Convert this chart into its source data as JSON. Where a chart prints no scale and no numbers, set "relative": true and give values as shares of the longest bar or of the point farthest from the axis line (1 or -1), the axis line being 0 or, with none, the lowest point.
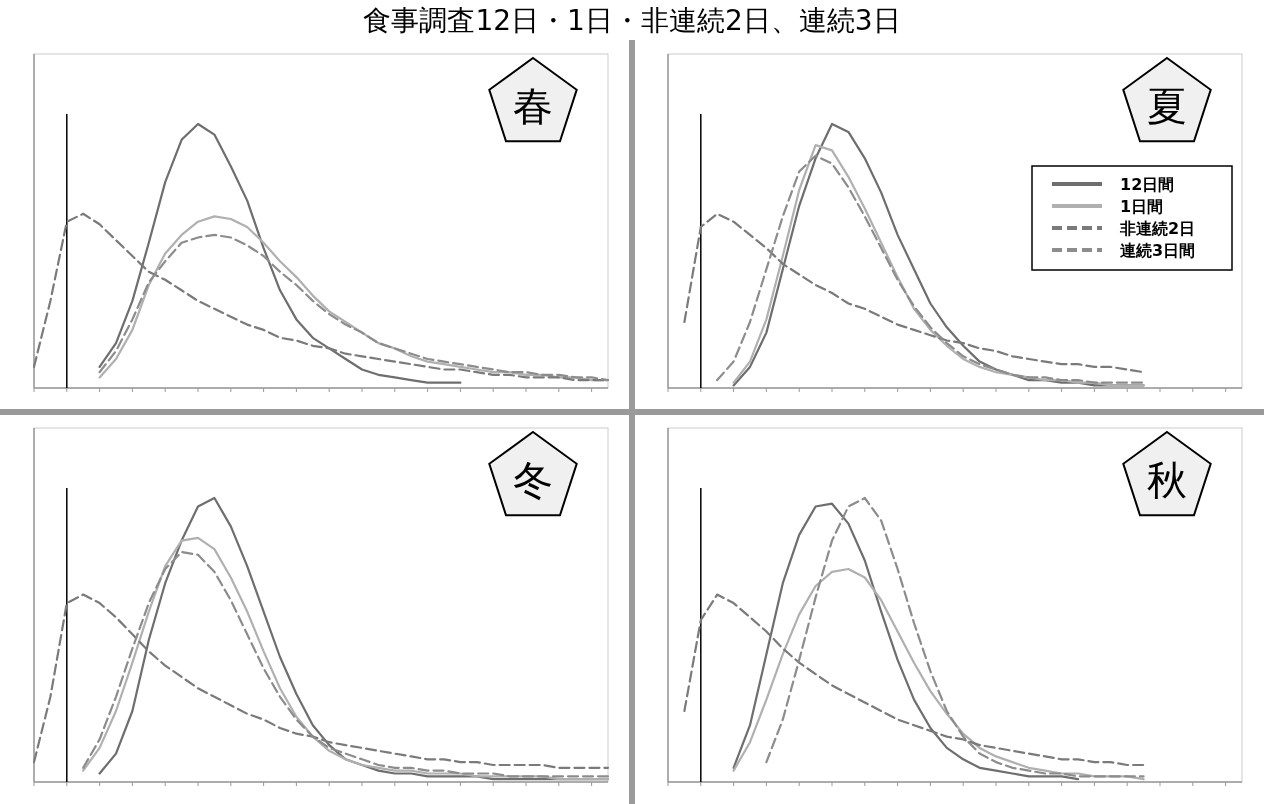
{
  "chart_data": [
    {
      "type": "line",
      "title": "春",
      "relative": true,
      "annotations": [
        "食事調査12日・1日・非連続2日、連続3日"
      ],
      "categories": [
        null,
        null,
        null,
        null,
        null,
        null,
        null,
        null,
        null,
        null,
        null,
        null,
        null,
        null,
        null,
        null,
        null,
        null,
        null,
        null,
        null,
        null,
        null,
        null,
        null,
        null,
        null,
        null,
        null,
        null,
        null,
        null,
        null,
        null,
        null,
        null
      ],
      "series": [
        {
          "color": "#6e6e6e",
          "line_style": "solid",
          "values": [
            null,
            null,
            null,
            null,
            0.08,
            0.17,
            0.33,
            0.55,
            0.78,
            0.94,
            1.0,
            0.96,
            0.84,
            0.71,
            0.53,
            0.37,
            0.26,
            0.19,
            0.15,
            0.11,
            0.07,
            0.05,
            0.04,
            0.03,
            0.02,
            0.02,
            0.02,
            null,
            null,
            null,
            null,
            null,
            null,
            null,
            null,
            null
          ]
        },
        {
          "color": "#b0b0b0",
          "line_style": "solid",
          "values": [
            null,
            null,
            null,
            null,
            0.04,
            0.11,
            0.22,
            0.39,
            0.51,
            0.58,
            0.63,
            0.65,
            0.64,
            0.61,
            0.55,
            0.48,
            0.42,
            0.35,
            0.29,
            0.25,
            0.21,
            0.17,
            0.15,
            0.12,
            0.1,
            0.09,
            0.08,
            0.07,
            0.06,
            0.06,
            0.05,
            0.05,
            0.04,
            0.04,
            0.03,
            0.03
          ]
        },
        {
          "color": "#7a7a7a",
          "line_style": "dashed",
          "values": [
            0.08,
            0.33,
            0.63,
            0.66,
            0.62,
            0.56,
            0.5,
            0.44,
            0.41,
            0.37,
            0.33,
            0.3,
            0.27,
            0.24,
            0.22,
            0.19,
            0.18,
            0.16,
            0.15,
            0.13,
            0.12,
            0.11,
            0.1,
            0.09,
            0.08,
            0.07,
            0.07,
            0.06,
            0.05,
            0.05,
            0.04,
            0.04,
            0.04,
            0.03,
            0.03,
            0.03
          ]
        },
        {
          "color": "#8c8c8c",
          "line_style": "dashed",
          "values": [
            null,
            null,
            null,
            null,
            0.06,
            0.14,
            0.26,
            0.4,
            0.48,
            0.55,
            0.57,
            0.58,
            0.57,
            0.54,
            0.5,
            0.44,
            0.39,
            0.33,
            0.28,
            0.24,
            0.21,
            0.17,
            0.15,
            0.13,
            0.11,
            0.1,
            0.09,
            0.08,
            0.07,
            0.06,
            0.06,
            0.05,
            0.05,
            0.04,
            0.04,
            0.03
          ]
        }
      ]
    },
    {
      "type": "line",
      "title": "夏",
      "relative": true,
      "legend": "top right",
      "categories": [
        null,
        null,
        null,
        null,
        null,
        null,
        null,
        null,
        null,
        null,
        null,
        null,
        null,
        null,
        null,
        null,
        null,
        null,
        null,
        null,
        null,
        null,
        null,
        null,
        null,
        null,
        null,
        null,
        null,
        null,
        null,
        null,
        null,
        null,
        null,
        null
      ],
      "series": [
        {
          "name": "12日間",
          "color": "#6e6e6e",
          "line_style": "solid",
          "values": [
            null,
            null,
            null,
            null,
            0.01,
            0.08,
            0.21,
            0.45,
            0.69,
            0.87,
            1.0,
            0.97,
            0.87,
            0.74,
            0.58,
            0.45,
            0.32,
            0.23,
            0.16,
            0.1,
            0.07,
            0.05,
            0.03,
            0.03,
            0.02,
            0.02,
            0.01,
            0.01,
            0.01,
            0.01,
            null,
            null,
            null,
            null,
            null,
            null
          ]
        },
        {
          "name": "1日間",
          "color": "#b0b0b0",
          "line_style": "solid",
          "values": [
            null,
            null,
            null,
            null,
            0.02,
            0.1,
            0.26,
            0.5,
            0.75,
            0.92,
            0.9,
            0.8,
            0.68,
            0.55,
            0.42,
            0.3,
            0.22,
            0.16,
            0.11,
            0.08,
            0.06,
            0.05,
            0.04,
            0.03,
            0.03,
            0.02,
            0.02,
            0.01,
            0.01,
            0.01,
            null,
            null,
            null,
            null,
            null,
            null
          ]
        },
        {
          "name": "非連続2日",
          "color": "#7a7a7a",
          "line_style": "dashed",
          "values": [
            null,
            0.25,
            0.61,
            0.66,
            0.63,
            0.58,
            0.53,
            0.47,
            0.43,
            0.39,
            0.36,
            0.32,
            0.3,
            0.27,
            0.24,
            0.22,
            0.2,
            0.18,
            0.17,
            0.15,
            0.14,
            0.12,
            0.11,
            0.1,
            0.09,
            0.09,
            0.08,
            0.08,
            0.07,
            0.06,
            null,
            null,
            null,
            null,
            null,
            null
          ]
        },
        {
          "name": "連続3日間",
          "color": "#8c8c8c",
          "line_style": "dashed",
          "values": [
            null,
            null,
            null,
            0.03,
            0.1,
            0.25,
            0.45,
            0.65,
            0.82,
            0.88,
            0.85,
            0.76,
            0.65,
            0.53,
            0.41,
            0.31,
            0.23,
            0.17,
            0.12,
            0.09,
            0.07,
            0.05,
            0.04,
            0.04,
            0.03,
            0.03,
            0.02,
            0.02,
            0.02,
            0.02,
            null,
            null,
            null,
            null,
            null,
            null
          ]
        }
      ]
    },
    {
      "type": "line",
      "title": "冬",
      "relative": true,
      "categories": [
        null,
        null,
        null,
        null,
        null,
        null,
        null,
        null,
        null,
        null,
        null,
        null,
        null,
        null,
        null,
        null,
        null,
        null,
        null,
        null,
        null,
        null,
        null,
        null,
        null,
        null,
        null,
        null,
        null,
        null,
        null,
        null,
        null,
        null,
        null,
        null
      ],
      "series": [
        {
          "color": "#6e6e6e",
          "line_style": "solid",
          "values": [
            null,
            null,
            null,
            null,
            0.03,
            0.1,
            0.25,
            0.5,
            0.7,
            0.85,
            0.97,
            1.0,
            0.9,
            0.76,
            0.6,
            0.44,
            0.31,
            0.2,
            0.13,
            0.08,
            0.06,
            0.04,
            0.03,
            0.03,
            0.02,
            0.02,
            0.02,
            0.02,
            0.01,
            0.01,
            0.01,
            0.01,
            0.01,
            0.01,
            0.01,
            0.01
          ]
        },
        {
          "color": "#b0b0b0",
          "line_style": "solid",
          "values": [
            null,
            null,
            null,
            0.04,
            0.12,
            0.25,
            0.42,
            0.6,
            0.76,
            0.85,
            0.86,
            0.82,
            0.72,
            0.6,
            0.46,
            0.33,
            0.23,
            0.16,
            0.11,
            0.08,
            0.06,
            0.05,
            0.04,
            0.04,
            0.03,
            0.03,
            0.03,
            0.02,
            0.02,
            0.02,
            0.02,
            0.02,
            0.01,
            0.01,
            0.01,
            0.01
          ]
        },
        {
          "color": "#7a7a7a",
          "line_style": "dashed",
          "values": [
            0.07,
            0.3,
            0.63,
            0.66,
            0.63,
            0.58,
            0.52,
            0.46,
            0.41,
            0.37,
            0.33,
            0.3,
            0.27,
            0.24,
            0.22,
            0.19,
            0.17,
            0.16,
            0.14,
            0.13,
            0.12,
            0.11,
            0.1,
            0.09,
            0.08,
            0.08,
            0.07,
            0.07,
            0.06,
            0.06,
            0.06,
            0.06,
            0.05,
            0.05,
            0.05,
            0.05
          ]
        },
        {
          "color": "#8c8c8c",
          "line_style": "dashed",
          "values": [
            null,
            null,
            null,
            0.05,
            0.15,
            0.3,
            0.47,
            0.63,
            0.75,
            0.81,
            0.8,
            0.74,
            0.64,
            0.52,
            0.4,
            0.3,
            0.22,
            0.16,
            0.12,
            0.1,
            0.08,
            0.06,
            0.05,
            0.05,
            0.04,
            0.04,
            0.03,
            0.03,
            0.03,
            0.02,
            0.02,
            0.02,
            0.02,
            0.02,
            0.02,
            0.02
          ]
        }
      ]
    },
    {
      "type": "line",
      "title": "秋",
      "relative": true,
      "categories": [
        null,
        null,
        null,
        null,
        null,
        null,
        null,
        null,
        null,
        null,
        null,
        null,
        null,
        null,
        null,
        null,
        null,
        null,
        null,
        null,
        null,
        null,
        null,
        null,
        null,
        null,
        null,
        null,
        null,
        null,
        null,
        null,
        null,
        null,
        null,
        null
      ],
      "series": [
        {
          "color": "#6e6e6e",
          "line_style": "solid",
          "values": [
            null,
            null,
            null,
            null,
            0.05,
            0.2,
            0.45,
            0.7,
            0.87,
            0.97,
            0.98,
            0.91,
            0.78,
            0.6,
            0.43,
            0.29,
            0.19,
            0.12,
            0.08,
            0.05,
            0.04,
            0.03,
            0.02,
            0.02,
            0.02,
            0.01,
            null,
            null,
            null,
            null,
            null,
            null,
            null,
            null,
            null,
            null
          ]
        },
        {
          "color": "#b0b0b0",
          "line_style": "solid",
          "values": [
            null,
            null,
            null,
            null,
            0.04,
            0.14,
            0.29,
            0.45,
            0.59,
            0.69,
            0.74,
            0.75,
            0.72,
            0.64,
            0.53,
            0.42,
            0.32,
            0.24,
            0.17,
            0.12,
            0.09,
            0.07,
            0.05,
            0.04,
            0.03,
            0.03,
            0.02,
            0.02,
            0.02,
            0.01,
            null,
            null,
            null,
            null,
            null,
            null
          ]
        },
        {
          "color": "#7a7a7a",
          "line_style": "dashed",
          "values": [
            null,
            0.25,
            0.57,
            0.66,
            0.63,
            0.58,
            0.53,
            0.47,
            0.42,
            0.38,
            0.34,
            0.31,
            0.28,
            0.25,
            0.22,
            0.2,
            0.18,
            0.16,
            0.15,
            0.13,
            0.12,
            0.11,
            0.1,
            0.09,
            0.08,
            0.08,
            0.07,
            0.07,
            0.06,
            0.06,
            null,
            null,
            null,
            null,
            null,
            null
          ]
        },
        {
          "color": "#8c8c8c",
          "line_style": "dashed",
          "values": [
            null,
            null,
            null,
            null,
            null,
            null,
            0.07,
            0.22,
            0.43,
            0.65,
            0.85,
            0.97,
            1.0,
            0.92,
            0.75,
            0.56,
            0.39,
            0.25,
            0.16,
            0.1,
            0.07,
            0.05,
            0.04,
            0.03,
            0.03,
            0.02,
            0.02,
            0.02,
            0.02,
            0.02,
            null,
            null,
            null,
            null,
            null,
            null
          ]
        }
      ]
    }
  ]
}
